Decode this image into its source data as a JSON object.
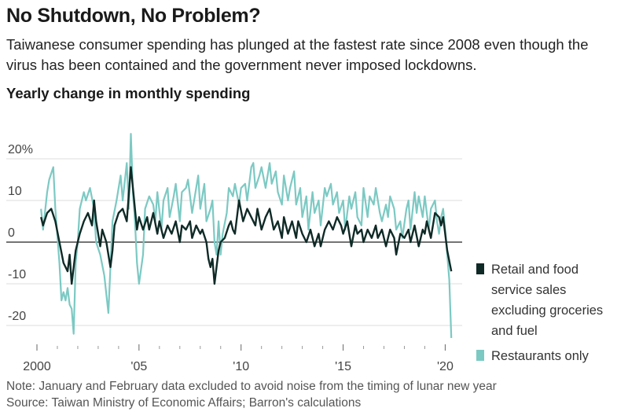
{
  "header": {
    "title": "No Shutdown, No Problem?",
    "subtitle": "Taiwanese consumer spending has plunged at the fastest rate since 2008 even though the virus has been contained and the government never imposed lockdowns.",
    "chart_title": "Yearly change in monthly spending"
  },
  "footer": {
    "note": "Note: January and February data excluded to avoid noise from the timing of lunar new year",
    "source": "Source: Taiwan Ministry of Economic Affairs; Barron's calculations"
  },
  "colors": {
    "retail": "#0f2a26",
    "restaurants": "#7cc9c3",
    "grid": "#dddddd",
    "zero": "#222222"
  },
  "chart_data": {
    "type": "line",
    "title": "Yearly change in monthly spending",
    "xlabel": "",
    "ylabel": "",
    "xlim": [
      2000.0,
      2020.6
    ],
    "ylim": [
      -24,
      27
    ],
    "y_ticks": [
      {
        "value": 20,
        "label": "20%"
      },
      {
        "value": 10,
        "label": "10"
      },
      {
        "value": 0,
        "label": "0"
      },
      {
        "value": -10,
        "label": "-10"
      },
      {
        "value": -20,
        "label": "-20"
      }
    ],
    "x_ticks": [
      {
        "value": 2000,
        "label": "2000"
      },
      {
        "value": 2005,
        "label": "'05"
      },
      {
        "value": 2010,
        "label": "'10"
      },
      {
        "value": 2015,
        "label": "'15"
      },
      {
        "value": 2020,
        "label": "'20"
      }
    ],
    "legend_position": "right",
    "series": [
      {
        "name": "Retail and food service sales excluding groceries and fuel",
        "color": "#0f2a26",
        "points": [
          [
            2000.2,
            6
          ],
          [
            2000.3,
            4
          ],
          [
            2000.5,
            7
          ],
          [
            2000.7,
            8
          ],
          [
            2000.9,
            5
          ],
          [
            2001.1,
            0
          ],
          [
            2001.3,
            -5
          ],
          [
            2001.5,
            -7
          ],
          [
            2001.6,
            -3
          ],
          [
            2001.7,
            -10
          ],
          [
            2001.9,
            -2
          ],
          [
            2002.1,
            2
          ],
          [
            2002.3,
            5
          ],
          [
            2002.5,
            7
          ],
          [
            2002.7,
            4
          ],
          [
            2002.8,
            10
          ],
          [
            2002.9,
            5
          ],
          [
            2003.1,
            -1
          ],
          [
            2003.2,
            3
          ],
          [
            2003.4,
            0
          ],
          [
            2003.6,
            -6
          ],
          [
            2003.7,
            -2
          ],
          [
            2003.8,
            4
          ],
          [
            2004.0,
            7
          ],
          [
            2004.2,
            8
          ],
          [
            2004.4,
            5
          ],
          [
            2004.6,
            18
          ],
          [
            2004.8,
            8
          ],
          [
            2004.9,
            3
          ],
          [
            2005.0,
            6
          ],
          [
            2005.2,
            3
          ],
          [
            2005.4,
            6
          ],
          [
            2005.5,
            3
          ],
          [
            2005.7,
            7
          ],
          [
            2005.9,
            2
          ],
          [
            2006.0,
            5
          ],
          [
            2006.2,
            1
          ],
          [
            2006.4,
            4
          ],
          [
            2006.6,
            2
          ],
          [
            2006.8,
            5
          ],
          [
            2007.0,
            0
          ],
          [
            2007.1,
            4
          ],
          [
            2007.3,
            3
          ],
          [
            2007.5,
            5
          ],
          [
            2007.6,
            1
          ],
          [
            2007.8,
            4
          ],
          [
            2008.0,
            2
          ],
          [
            2008.1,
            3
          ],
          [
            2008.3,
            0
          ],
          [
            2008.4,
            -4
          ],
          [
            2008.5,
            -6
          ],
          [
            2008.6,
            -4
          ],
          [
            2008.7,
            -10
          ],
          [
            2008.8,
            -6
          ],
          [
            2008.9,
            -2
          ],
          [
            2009.0,
            0
          ],
          [
            2009.2,
            1
          ],
          [
            2009.4,
            4
          ],
          [
            2009.5,
            5
          ],
          [
            2009.6,
            3
          ],
          [
            2009.7,
            2
          ],
          [
            2009.9,
            10
          ],
          [
            2010.1,
            5
          ],
          [
            2010.3,
            8
          ],
          [
            2010.5,
            6
          ],
          [
            2010.7,
            4
          ],
          [
            2010.8,
            8
          ],
          [
            2011.0,
            3
          ],
          [
            2011.2,
            6
          ],
          [
            2011.4,
            8
          ],
          [
            2011.6,
            3
          ],
          [
            2011.8,
            5
          ],
          [
            2012.0,
            1
          ],
          [
            2012.1,
            6
          ],
          [
            2012.3,
            2
          ],
          [
            2012.5,
            5
          ],
          [
            2012.7,
            1
          ],
          [
            2012.8,
            5
          ],
          [
            2013.0,
            2
          ],
          [
            2013.2,
            0
          ],
          [
            2013.4,
            3
          ],
          [
            2013.6,
            -1
          ],
          [
            2013.8,
            2
          ],
          [
            2013.9,
            -1
          ],
          [
            2014.1,
            3
          ],
          [
            2014.3,
            5
          ],
          [
            2014.5,
            3
          ],
          [
            2014.7,
            6
          ],
          [
            2014.9,
            4
          ],
          [
            2015.0,
            2
          ],
          [
            2015.2,
            5
          ],
          [
            2015.4,
            -1
          ],
          [
            2015.6,
            4
          ],
          [
            2015.7,
            2
          ],
          [
            2015.9,
            3
          ],
          [
            2016.0,
            0
          ],
          [
            2016.2,
            3
          ],
          [
            2016.4,
            1
          ],
          [
            2016.6,
            4
          ],
          [
            2016.7,
            1
          ],
          [
            2016.9,
            3
          ],
          [
            2017.1,
            -1
          ],
          [
            2017.3,
            3
          ],
          [
            2017.5,
            1
          ],
          [
            2017.6,
            -3
          ],
          [
            2017.8,
            2
          ],
          [
            2018.0,
            1
          ],
          [
            2018.2,
            3
          ],
          [
            2018.3,
            0
          ],
          [
            2018.5,
            4
          ],
          [
            2018.7,
            -1
          ],
          [
            2018.9,
            3
          ],
          [
            2019.0,
            2
          ],
          [
            2019.1,
            5
          ],
          [
            2019.3,
            1
          ],
          [
            2019.5,
            7
          ],
          [
            2019.7,
            6
          ],
          [
            2019.8,
            4
          ],
          [
            2019.9,
            6
          ],
          [
            2020.1,
            -2
          ],
          [
            2020.3,
            -7
          ]
        ]
      },
      {
        "name": "Restaurants only",
        "color": "#7cc9c3",
        "points": [
          [
            2000.2,
            8
          ],
          [
            2000.3,
            3
          ],
          [
            2000.5,
            12
          ],
          [
            2000.6,
            15
          ],
          [
            2000.8,
            18
          ],
          [
            2000.9,
            8
          ],
          [
            2001.1,
            -5
          ],
          [
            2001.2,
            -14
          ],
          [
            2001.3,
            -12
          ],
          [
            2001.4,
            -14
          ],
          [
            2001.5,
            -11
          ],
          [
            2001.6,
            -15
          ],
          [
            2001.7,
            -16
          ],
          [
            2001.8,
            -22
          ],
          [
            2001.9,
            -5
          ],
          [
            2002.0,
            0
          ],
          [
            2002.1,
            8
          ],
          [
            2002.3,
            12
          ],
          [
            2002.4,
            10
          ],
          [
            2002.6,
            13
          ],
          [
            2002.8,
            8
          ],
          [
            2002.9,
            0
          ],
          [
            2003.1,
            -3
          ],
          [
            2003.3,
            -8
          ],
          [
            2003.5,
            -17
          ],
          [
            2003.7,
            5
          ],
          [
            2003.9,
            10
          ],
          [
            2004.1,
            16
          ],
          [
            2004.2,
            10
          ],
          [
            2004.4,
            19
          ],
          [
            2004.5,
            8
          ],
          [
            2004.6,
            26
          ],
          [
            2004.7,
            12
          ],
          [
            2004.8,
            5
          ],
          [
            2004.9,
            -5
          ],
          [
            2005.0,
            -10
          ],
          [
            2005.2,
            -3
          ],
          [
            2005.3,
            8
          ],
          [
            2005.5,
            11
          ],
          [
            2005.7,
            9
          ],
          [
            2005.8,
            5
          ],
          [
            2005.9,
            12
          ],
          [
            2006.1,
            3
          ],
          [
            2006.2,
            10
          ],
          [
            2006.4,
            13
          ],
          [
            2006.5,
            6
          ],
          [
            2006.7,
            11
          ],
          [
            2006.8,
            14
          ],
          [
            2007.0,
            5
          ],
          [
            2007.1,
            12
          ],
          [
            2007.3,
            13
          ],
          [
            2007.4,
            15
          ],
          [
            2007.6,
            7
          ],
          [
            2007.7,
            10
          ],
          [
            2007.9,
            16
          ],
          [
            2008.0,
            8
          ],
          [
            2008.2,
            14
          ],
          [
            2008.3,
            5
          ],
          [
            2008.5,
            8
          ],
          [
            2008.6,
            10
          ],
          [
            2008.7,
            0
          ],
          [
            2008.8,
            -3
          ],
          [
            2008.9,
            5
          ],
          [
            2009.0,
            -3
          ],
          [
            2009.1,
            2
          ],
          [
            2009.3,
            7
          ],
          [
            2009.4,
            13
          ],
          [
            2009.6,
            11
          ],
          [
            2009.7,
            14
          ],
          [
            2009.9,
            9
          ],
          [
            2010.0,
            13
          ],
          [
            2010.2,
            14
          ],
          [
            2010.3,
            10
          ],
          [
            2010.5,
            18
          ],
          [
            2010.6,
            19
          ],
          [
            2010.7,
            13
          ],
          [
            2010.9,
            16
          ],
          [
            2011.0,
            18
          ],
          [
            2011.2,
            13
          ],
          [
            2011.4,
            19
          ],
          [
            2011.5,
            14
          ],
          [
            2011.7,
            17
          ],
          [
            2011.8,
            12
          ],
          [
            2012.0,
            9
          ],
          [
            2012.1,
            16
          ],
          [
            2012.3,
            10
          ],
          [
            2012.4,
            13
          ],
          [
            2012.6,
            17
          ],
          [
            2012.7,
            9
          ],
          [
            2012.9,
            13
          ],
          [
            2013.0,
            6
          ],
          [
            2013.2,
            11
          ],
          [
            2013.3,
            3
          ],
          [
            2013.5,
            12
          ],
          [
            2013.6,
            7
          ],
          [
            2013.8,
            10
          ],
          [
            2013.9,
            4
          ],
          [
            2014.1,
            13
          ],
          [
            2014.2,
            11
          ],
          [
            2014.4,
            14
          ],
          [
            2014.5,
            9
          ],
          [
            2014.7,
            12
          ],
          [
            2014.8,
            7
          ],
          [
            2015.0,
            10
          ],
          [
            2015.1,
            3
          ],
          [
            2015.3,
            11
          ],
          [
            2015.4,
            8
          ],
          [
            2015.6,
            12
          ],
          [
            2015.7,
            6
          ],
          [
            2015.9,
            4
          ],
          [
            2016.0,
            13
          ],
          [
            2016.2,
            6
          ],
          [
            2016.3,
            11
          ],
          [
            2016.5,
            9
          ],
          [
            2016.6,
            13
          ],
          [
            2016.8,
            7
          ],
          [
            2016.9,
            5
          ],
          [
            2017.1,
            9
          ],
          [
            2017.2,
            6
          ],
          [
            2017.3,
            11
          ],
          [
            2017.5,
            8
          ],
          [
            2017.6,
            3
          ],
          [
            2017.8,
            5
          ],
          [
            2017.9,
            1
          ],
          [
            2018.1,
            8
          ],
          [
            2018.2,
            10
          ],
          [
            2018.3,
            3
          ],
          [
            2018.5,
            12
          ],
          [
            2018.6,
            7
          ],
          [
            2018.7,
            11
          ],
          [
            2018.9,
            6
          ],
          [
            2019.0,
            11
          ],
          [
            2019.2,
            3
          ],
          [
            2019.3,
            8
          ],
          [
            2019.5,
            10
          ],
          [
            2019.6,
            5
          ],
          [
            2019.7,
            2
          ],
          [
            2019.8,
            6
          ],
          [
            2019.9,
            8
          ],
          [
            2020.0,
            3
          ],
          [
            2020.2,
            -9
          ],
          [
            2020.3,
            -23
          ]
        ]
      }
    ]
  }
}
